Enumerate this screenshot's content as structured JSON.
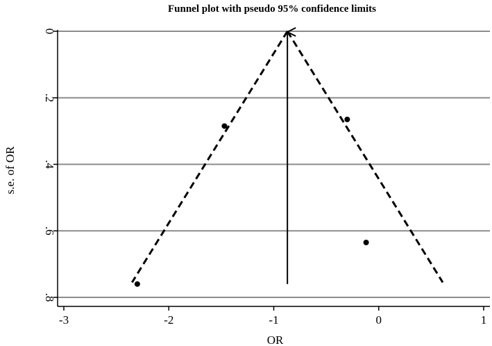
{
  "chart_data": {
    "type": "scatter",
    "title": "Funnel plot with pseudo 95% confidence limits",
    "xlabel": "OR",
    "ylabel": "s.e. of OR",
    "xlim": [
      -3,
      1
    ],
    "ylim": [
      0,
      0.8
    ],
    "y_reversed": true,
    "grid": true,
    "x_ticks": [
      -3,
      -2,
      -1,
      0,
      1
    ],
    "x_tick_labels": [
      "-3",
      "-2",
      "-1",
      "0",
      "1"
    ],
    "y_ticks": [
      0,
      0.2,
      0.4,
      0.6,
      0.8
    ],
    "y_tick_labels": [
      "0",
      ".2",
      ".4",
      ".6",
      ".8"
    ],
    "points": [
      {
        "x": -2.3,
        "y": 0.76
      },
      {
        "x": -1.47,
        "y": 0.285
      },
      {
        "x": -0.3,
        "y": 0.265
      },
      {
        "x": -0.12,
        "y": 0.635
      }
    ],
    "pooled_estimate": {
      "x": -0.87,
      "y_from": 0,
      "y_to": 0.76
    },
    "confidence_limits": {
      "apex": {
        "x": -0.87,
        "y": 0
      },
      "lower_end": {
        "x": -2.35,
        "y": 0.755
      },
      "upper_end": {
        "x": 0.61,
        "y": 0.755
      }
    }
  },
  "colors": {
    "grid": "#8c8c8c",
    "marks": "#000000",
    "axis": "#000000"
  }
}
